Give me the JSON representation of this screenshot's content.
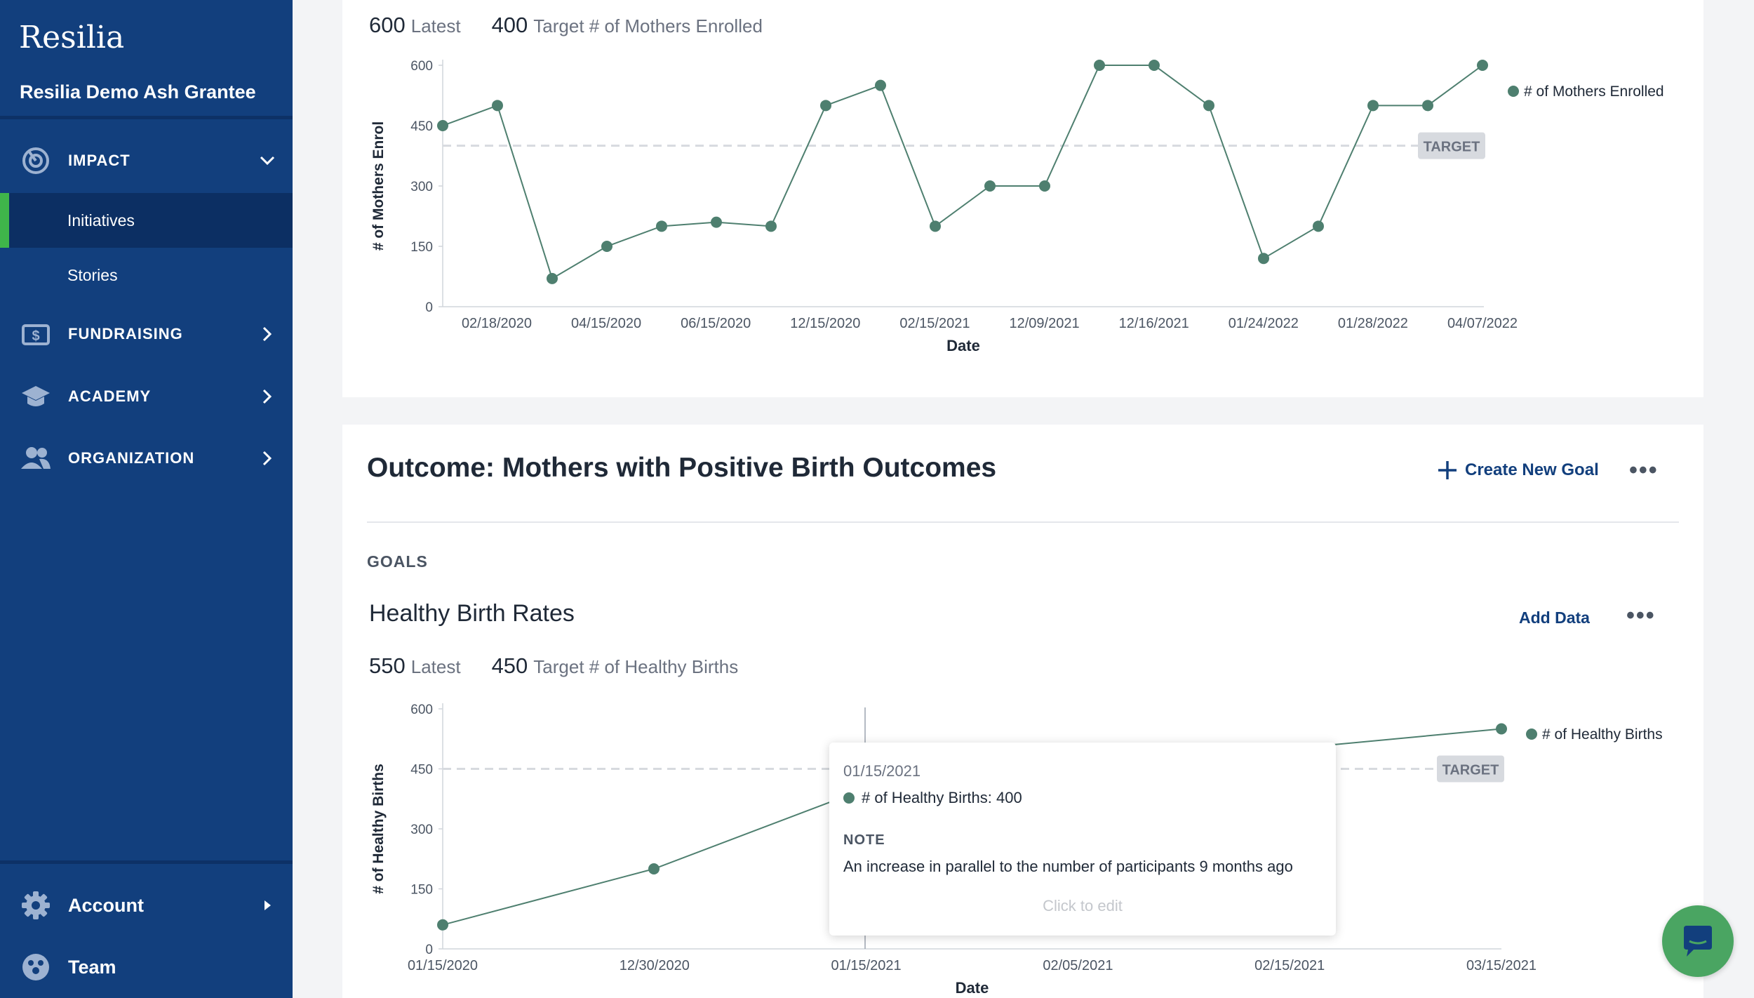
{
  "sidebar": {
    "brand": "Resilia",
    "org_name": "Resilia Demo Ash Grantee",
    "nav": {
      "impact": "IMPACT",
      "initiatives": "Initiatives",
      "stories": "Stories",
      "fundraising": "FUNDRAISING",
      "academy": "ACADEMY",
      "organization": "ORGANIZATION"
    },
    "bottom": {
      "account": "Account",
      "team": "Team"
    }
  },
  "top_goal": {
    "latest_value": "600",
    "latest_label": "Latest",
    "target_value": "400",
    "target_label": "Target # of Mothers Enrolled",
    "target_tag": "TARGET"
  },
  "outcome": {
    "title": "Outcome: Mothers with Positive Birth Outcomes",
    "create_goal": "Create New Goal",
    "goals_label": "GOALS",
    "goal_title": "Healthy Birth Rates",
    "add_data": "Add Data",
    "latest_value": "550",
    "latest_label": "Latest",
    "target_value": "450",
    "target_label": "Target # of Healthy Births",
    "target_tag": "TARGET"
  },
  "tooltip": {
    "date": "01/15/2021",
    "series_text": "# of Healthy Births: 400",
    "note_label": "NOTE",
    "note": "An increase in parallel to the number of participants 9 months ago",
    "edit": "Click to edit"
  },
  "colors": {
    "sidebar": "#123f7d",
    "active_bar": "#3fb54a",
    "series": "#4e7f6f",
    "chat": "#4aa562"
  },
  "chart_data": [
    {
      "type": "line",
      "title": "",
      "xlabel": "Date",
      "ylabel": "# of Mothers Enrol",
      "ylim": [
        0,
        600
      ],
      "yticks": [
        0,
        150,
        300,
        450,
        600
      ],
      "xtick_labels": [
        "02/18/2020",
        "04/15/2020",
        "06/15/2020",
        "12/15/2020",
        "02/15/2021",
        "12/09/2021",
        "12/16/2021",
        "01/24/2022",
        "01/28/2022",
        "04/07/2022"
      ],
      "target": 400,
      "target_label": "TARGET",
      "legend": "right",
      "grid": false,
      "series": [
        {
          "name": "# of Mothers Enrolled",
          "values": [
            450,
            500,
            70,
            150,
            200,
            210,
            200,
            500,
            550,
            200,
            300,
            300,
            600,
            600,
            500,
            120,
            200,
            500,
            500,
            600
          ]
        }
      ]
    },
    {
      "type": "line",
      "title": "",
      "xlabel": "Date",
      "ylabel": "# of Healthy Births",
      "ylim": [
        0,
        600
      ],
      "yticks": [
        0,
        150,
        300,
        450,
        600
      ],
      "x": [
        "01/15/2020",
        "12/30/2020",
        "01/15/2021",
        "03/15/2021"
      ],
      "xtick_labels": [
        "01/15/2020",
        "12/30/2020",
        "01/15/2021",
        "02/05/2021",
        "02/15/2021",
        "03/15/2021"
      ],
      "target": 450,
      "target_label": "TARGET",
      "legend": "right",
      "grid": false,
      "series": [
        {
          "name": "# of Healthy Births",
          "values": [
            60,
            200,
            400,
            550
          ]
        }
      ]
    }
  ]
}
